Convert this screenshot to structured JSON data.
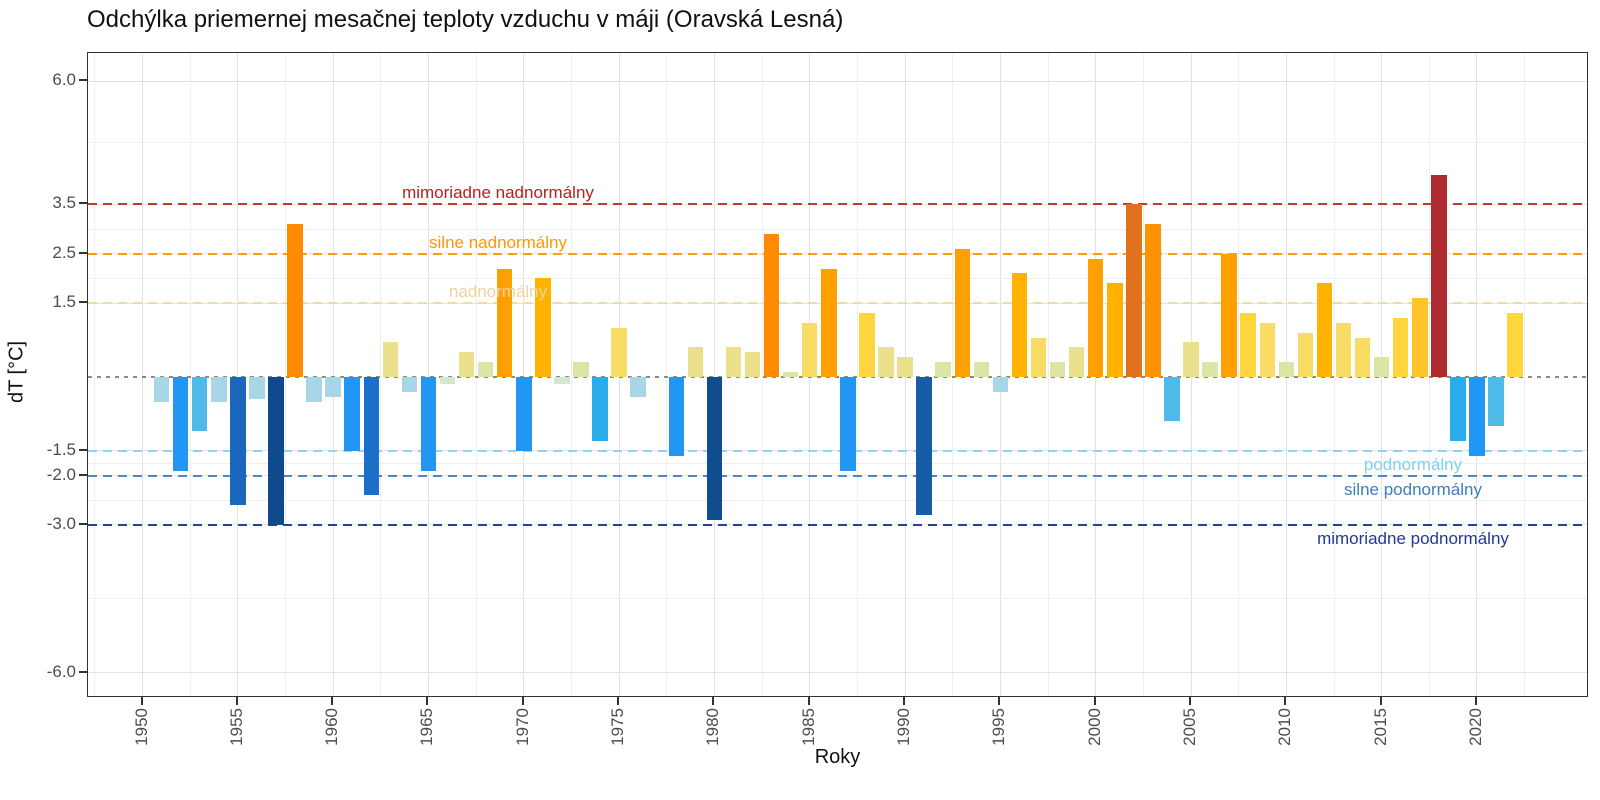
{
  "title": "Odchýlka priemernej mesačnej teploty vzduchu v máji (Oravská Lesná)",
  "x_axis": {
    "label": "Roky",
    "ticks": [
      1950,
      1955,
      1960,
      1965,
      1970,
      1975,
      1980,
      1985,
      1990,
      1995,
      2000,
      2005,
      2010,
      2015,
      2020
    ]
  },
  "y_axis": {
    "label": "dT [°C]",
    "ticks": [
      6.0,
      3.5,
      2.5,
      1.5,
      -1.5,
      -2.0,
      -3.0,
      -6.0
    ],
    "tick_labels": [
      "6.0",
      "3.5",
      "2.5",
      "1.5",
      "-1.5",
      "-2.0",
      "-3.0",
      "-6.0"
    ]
  },
  "zero_line_color": "#8a8a8a",
  "thresholds": [
    {
      "value": 3.5,
      "label": "mimoriadne nadnormálny",
      "line_color": "#c0392b",
      "text_color": "#b22222",
      "side": "above"
    },
    {
      "value": 2.5,
      "label": "silne nadnormálny",
      "line_color": "#ffa000",
      "text_color": "#ff9800",
      "side": "above"
    },
    {
      "value": 1.5,
      "label": "nadnormálny",
      "line_color": "#f5d9a0",
      "text_color": "#eed3a0",
      "side": "above"
    },
    {
      "value": -1.5,
      "label": "podnormálny",
      "line_color": "#8fd4f8",
      "text_color": "#7fcff4",
      "side": "below"
    },
    {
      "value": -2.0,
      "label": "silne podnormálny",
      "line_color": "#4e86c6",
      "text_color": "#3d7ec1",
      "side": "below"
    },
    {
      "value": -3.0,
      "label": "mimoriadne podnormálny",
      "line_color": "#2b3f9e",
      "text_color": "#20389b",
      "side": "below"
    }
  ],
  "chart_data": {
    "type": "bar",
    "title": "Odchýlka priemernej mesačnej teploty vzduchu v máji (Oravská Lesná)",
    "xlabel": "Roky",
    "ylabel": "dT [°C]",
    "ylim": [
      -6.5,
      6.6
    ],
    "grid": true,
    "x": [
      1951,
      1952,
      1953,
      1954,
      1955,
      1956,
      1957,
      1958,
      1959,
      1960,
      1961,
      1962,
      1963,
      1964,
      1965,
      1966,
      1967,
      1968,
      1969,
      1970,
      1971,
      1972,
      1973,
      1974,
      1975,
      1976,
      1977,
      1978,
      1979,
      1980,
      1981,
      1982,
      1983,
      1984,
      1985,
      1986,
      1987,
      1988,
      1989,
      1990,
      1991,
      1992,
      1993,
      1994,
      1995,
      1996,
      1997,
      1998,
      1999,
      2000,
      2001,
      2002,
      2003,
      2004,
      2005,
      2006,
      2007,
      2008,
      2009,
      2010,
      2011,
      2012,
      2013,
      2014,
      2015,
      2016,
      2017,
      2018,
      2019,
      2020,
      2021,
      2022
    ],
    "values": [
      -0.5,
      -1.9,
      -1.1,
      -0.5,
      -2.6,
      -0.45,
      -3.0,
      3.1,
      -0.5,
      -0.4,
      -1.5,
      -2.4,
      0.7,
      -0.3,
      -1.9,
      -0.15,
      0.5,
      0.3,
      2.2,
      -1.5,
      2.0,
      -0.15,
      0.3,
      -1.3,
      1.0,
      -0.4,
      0.0,
      -1.6,
      0.6,
      -2.9,
      0.6,
      0.5,
      2.9,
      0.1,
      1.1,
      2.2,
      -1.9,
      1.3,
      0.6,
      0.4,
      -2.8,
      0.3,
      2.6,
      0.3,
      -0.3,
      2.1,
      0.8,
      0.3,
      0.6,
      2.4,
      1.9,
      3.5,
      3.1,
      -0.9,
      0.7,
      0.3,
      2.5,
      1.3,
      1.1,
      0.3,
      0.9,
      1.9,
      1.1,
      0.8,
      0.4,
      1.2,
      1.6,
      4.1,
      -1.3,
      -1.6,
      -1.0,
      1.3
    ],
    "colors": [
      "#a9d6e6",
      "#2196f3",
      "#4fb9e8",
      "#a9d6e6",
      "#1b67be",
      "#a9d6e6",
      "#0e4a8c",
      "#ff8c00",
      "#a9d6e6",
      "#a9d6e6",
      "#2196f3",
      "#1c6fc9",
      "#ebe18d",
      "#a9d6e6",
      "#2196f3",
      "#d5e5ce",
      "#ebe18d",
      "#dce5a4",
      "#ffa000",
      "#2196f3",
      "#ffb300",
      "#d5e5ce",
      "#dce5a4",
      "#29ace9",
      "#f8dc63",
      "#a9d6e6",
      null,
      "#2196f3",
      "#ebe18d",
      "#0f4d8f",
      "#ebe18d",
      "#ebe18d",
      "#ff8c00",
      "#dce5a4",
      "#f8dc63",
      "#ffa000",
      "#2196f3",
      "#ffd63e",
      "#ebe18d",
      "#ebe18d",
      "#175ca6",
      "#dce5a4",
      "#ffa000",
      "#dce5a4",
      "#a9d6e6",
      "#ffb300",
      "#f8dc63",
      "#dce5a4",
      "#ebe18d",
      "#ffa000",
      "#ffb300",
      "#e2711d",
      "#ff9105",
      "#4fb9e8",
      "#ebe18d",
      "#dce5a4",
      "#ffa000",
      "#ffd63e",
      "#f8dc63",
      "#dce5a4",
      "#f8dc63",
      "#ffb300",
      "#f8dc63",
      "#f8dc63",
      "#dce5a4",
      "#ffd63e",
      "#ffc428",
      "#b02b30",
      "#29ace9",
      "#2196f3",
      "#4fb9e8",
      "#ffd63e"
    ]
  }
}
